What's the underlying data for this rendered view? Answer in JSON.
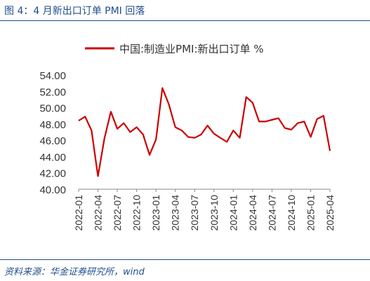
{
  "figure_title": "图 4：4 月新出口订单 PMI 回落",
  "source_note": "资料来源：华金证券研究所，wind",
  "chart_data": {
    "type": "line",
    "title": "",
    "xlabel": "",
    "ylabel": "",
    "legend": "top-center",
    "grid": false,
    "ylim": [
      40,
      54
    ],
    "y_ticks": [
      "54.00",
      "52.00",
      "50.00",
      "48.00",
      "46.00",
      "44.00",
      "42.00",
      "40.00"
    ],
    "x_tick_labels": [
      "2022-01",
      "2022-04",
      "2022-07",
      "2022-10",
      "2023-01",
      "2023-04",
      "2023-07",
      "2023-10",
      "2024-01",
      "2024-04",
      "2024-07",
      "2024-10",
      "2025-01",
      "2025-04"
    ],
    "line_color": "#cc0000",
    "series": [
      {
        "name": "中国:制造业PMI:新出口订单 %",
        "x": [
          "2022-01",
          "2022-02",
          "2022-03",
          "2022-04",
          "2022-05",
          "2022-06",
          "2022-07",
          "2022-08",
          "2022-09",
          "2022-10",
          "2022-11",
          "2022-12",
          "2023-01",
          "2023-02",
          "2023-03",
          "2023-04",
          "2023-05",
          "2023-06",
          "2023-07",
          "2023-08",
          "2023-09",
          "2023-10",
          "2023-11",
          "2023-12",
          "2024-01",
          "2024-02",
          "2024-03",
          "2024-04",
          "2024-05",
          "2024-06",
          "2024-07",
          "2024-08",
          "2024-09",
          "2024-10",
          "2024-11",
          "2024-12",
          "2025-01",
          "2025-02",
          "2025-03",
          "2025-04"
        ],
        "values": [
          48.4,
          48.9,
          47.2,
          41.6,
          46.2,
          49.5,
          47.4,
          48.1,
          47.0,
          47.6,
          46.7,
          44.2,
          46.1,
          52.4,
          50.4,
          47.6,
          47.2,
          46.4,
          46.3,
          46.7,
          47.8,
          46.8,
          46.3,
          45.8,
          47.2,
          46.3,
          51.3,
          50.6,
          48.3,
          48.3,
          48.5,
          48.7,
          47.5,
          47.3,
          48.1,
          48.3,
          46.4,
          48.6,
          49.0,
          44.7
        ]
      }
    ]
  }
}
